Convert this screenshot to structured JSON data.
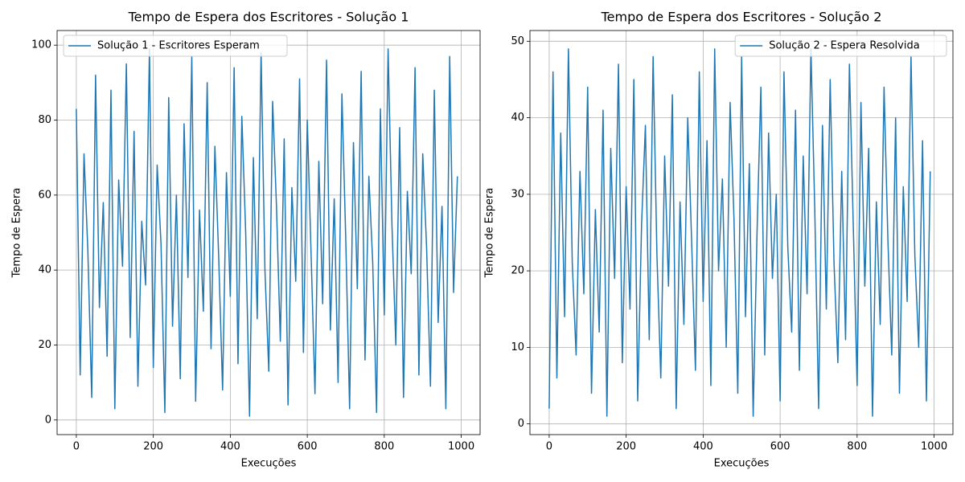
{
  "chart_data": [
    {
      "type": "line",
      "title": "Tempo de Espera dos Escritores - Solução 1",
      "x_label": "Execuções",
      "y_label": "Tempo de Espera",
      "x": [
        0,
        10,
        20,
        30,
        40,
        50,
        60,
        70,
        80,
        90,
        100,
        110,
        120,
        130,
        140,
        150,
        160,
        170,
        180,
        190,
        200,
        210,
        220,
        230,
        240,
        250,
        260,
        270,
        280,
        290,
        300,
        310,
        320,
        330,
        340,
        350,
        360,
        370,
        380,
        390,
        400,
        410,
        420,
        430,
        440,
        450,
        460,
        470,
        480,
        490,
        500,
        510,
        520,
        530,
        540,
        550,
        560,
        570,
        580,
        590,
        600,
        610,
        620,
        630,
        640,
        650,
        660,
        670,
        680,
        690,
        700,
        710,
        720,
        730,
        740,
        750,
        760,
        770,
        780,
        790,
        800,
        810,
        820,
        830,
        840,
        850,
        860,
        870,
        880,
        890,
        900,
        910,
        920,
        930,
        940,
        950,
        960,
        970,
        980,
        990
      ],
      "series": [
        {
          "name": "Solução 1 - Escritores Esperam",
          "color": "#1f77b4",
          "values": [
            83,
            12,
            71,
            45,
            6,
            92,
            30,
            58,
            17,
            88,
            3,
            64,
            41,
            95,
            22,
            77,
            9,
            53,
            36,
            99,
            14,
            68,
            47,
            2,
            86,
            25,
            60,
            11,
            79,
            38,
            97,
            5,
            56,
            29,
            90,
            19,
            73,
            43,
            8,
            66,
            33,
            94,
            15,
            81,
            50,
            1,
            70,
            27,
            98,
            40,
            13,
            85,
            57,
            21,
            75,
            4,
            62,
            37,
            91,
            18,
            80,
            44,
            7,
            69,
            31,
            96,
            24,
            59,
            10,
            87,
            48,
            3,
            74,
            35,
            93,
            16,
            65,
            42,
            2,
            83,
            28,
            99,
            52,
            20,
            78,
            6,
            61,
            39,
            94,
            12,
            71,
            46,
            9,
            88,
            26,
            57,
            3,
            97,
            34,
            65
          ]
        }
      ],
      "xlim": [
        -49.95,
        1048.95
      ],
      "ylim": [
        -3.9,
        103.9
      ],
      "xticks": [
        0,
        200,
        400,
        600,
        800,
        1000
      ],
      "yticks": [
        0,
        20,
        40,
        60,
        80,
        100
      ],
      "grid": true,
      "legend": "upper left"
    },
    {
      "type": "line",
      "title": "Tempo de Espera dos Escritores - Solução 2",
      "x_label": "Execuções",
      "y_label": "Tempo de Espera",
      "x": [
        0,
        10,
        20,
        30,
        40,
        50,
        60,
        70,
        80,
        90,
        100,
        110,
        120,
        130,
        140,
        150,
        160,
        170,
        180,
        190,
        200,
        210,
        220,
        230,
        240,
        250,
        260,
        270,
        280,
        290,
        300,
        310,
        320,
        330,
        340,
        350,
        360,
        370,
        380,
        390,
        400,
        410,
        420,
        430,
        440,
        450,
        460,
        470,
        480,
        490,
        500,
        510,
        520,
        530,
        540,
        550,
        560,
        570,
        580,
        590,
        600,
        610,
        620,
        630,
        640,
        650,
        660,
        670,
        680,
        690,
        700,
        710,
        720,
        730,
        740,
        750,
        760,
        770,
        780,
        790,
        800,
        810,
        820,
        830,
        840,
        850,
        860,
        870,
        880,
        890,
        900,
        910,
        920,
        930,
        940,
        950,
        960,
        970,
        980,
        990
      ],
      "series": [
        {
          "name": "Solução 2 - Espera Resolvida",
          "color": "#1f77b4",
          "values": [
            2,
            46,
            6,
            38,
            14,
            49,
            21,
            9,
            33,
            17,
            44,
            4,
            28,
            12,
            41,
            1,
            36,
            19,
            47,
            8,
            31,
            15,
            45,
            3,
            26,
            39,
            11,
            48,
            22,
            6,
            35,
            18,
            43,
            2,
            29,
            13,
            40,
            24,
            7,
            46,
            16,
            37,
            5,
            49,
            20,
            32,
            10,
            42,
            27,
            4,
            48,
            14,
            34,
            1,
            25,
            44,
            9,
            38,
            19,
            30,
            3,
            46,
            23,
            12,
            41,
            7,
            35,
            17,
            49,
            28,
            2,
            39,
            15,
            45,
            21,
            8,
            33,
            11,
            47,
            26,
            5,
            42,
            18,
            36,
            1,
            29,
            13,
            44,
            24,
            9,
            40,
            4,
            31,
            16,
            48,
            22,
            10,
            37,
            3,
            33
          ]
        }
      ],
      "xlim": [
        -49.95,
        1048.95
      ],
      "ylim": [
        -1.4,
        51.4
      ],
      "xticks": [
        0,
        200,
        400,
        600,
        800,
        1000
      ],
      "yticks": [
        0,
        10,
        20,
        30,
        40,
        50
      ],
      "grid": true,
      "legend": "upper right"
    }
  ]
}
